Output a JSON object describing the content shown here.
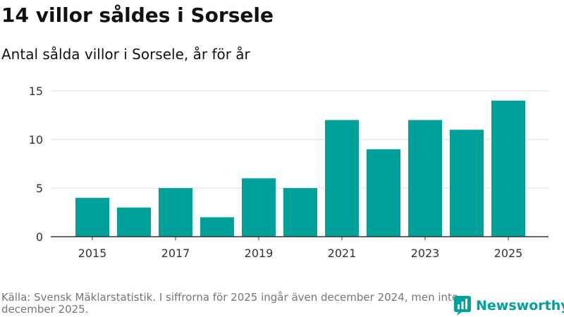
{
  "header": {
    "title": "14 villor såldes i Sorsele",
    "subtitle": "Antal sålda villor i Sorsele, år för år"
  },
  "chart_data": {
    "type": "bar",
    "categories": [
      "2015",
      "2016",
      "2017",
      "2018",
      "2019",
      "2020",
      "2021",
      "2022",
      "2023",
      "2024",
      "2025"
    ],
    "values": [
      4,
      3,
      5,
      2,
      6,
      5,
      12,
      9,
      12,
      11,
      14
    ],
    "x_tick_labels": [
      "2015",
      "2017",
      "2019",
      "2021",
      "2023",
      "2025"
    ],
    "y_ticks": [
      0,
      5,
      10,
      15
    ],
    "ylim": [
      0,
      15
    ],
    "title": "14 villor såldes i Sorsele",
    "subtitle": "Antal sålda villor i Sorsele, år för år",
    "xlabel": "",
    "ylabel": "",
    "grid": true,
    "bar_color": "#00a19a"
  },
  "footer": {
    "source_note": "Källa: Svensk Mäklarstatistik. I siffrorna för 2025 ingår även december 2024, men inte december 2025.",
    "brand": "Newsworthy",
    "brand_icon": "newsworthy-logo-icon"
  },
  "colors": {
    "accent": "#00a19a",
    "grid": "#dddddd",
    "axis": "#333333",
    "muted_text": "#767676"
  }
}
